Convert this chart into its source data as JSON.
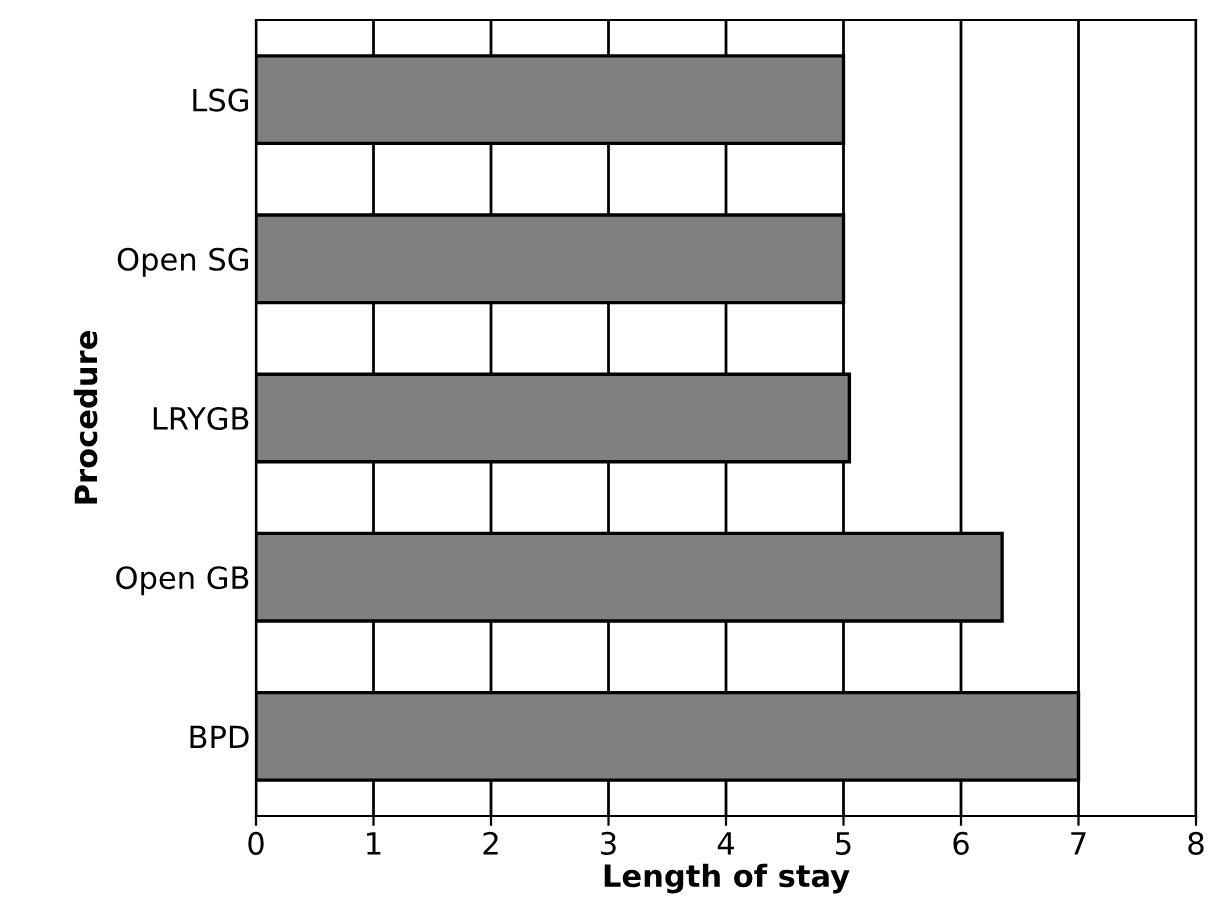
{
  "chart_data": {
    "type": "bar",
    "orientation": "horizontal",
    "xlabel": "Length of stay",
    "ylabel": "Procedure",
    "categories": [
      "LSG",
      "Open SG",
      "LRYGB",
      "Open GB",
      "BPD"
    ],
    "values": [
      5.0,
      5.0,
      5.05,
      6.35,
      7.0
    ],
    "color": "#808080",
    "xlim": [
      0,
      8
    ],
    "xticks": [
      0,
      1,
      2,
      3,
      4,
      5,
      6,
      7,
      8
    ],
    "grid": "x"
  }
}
